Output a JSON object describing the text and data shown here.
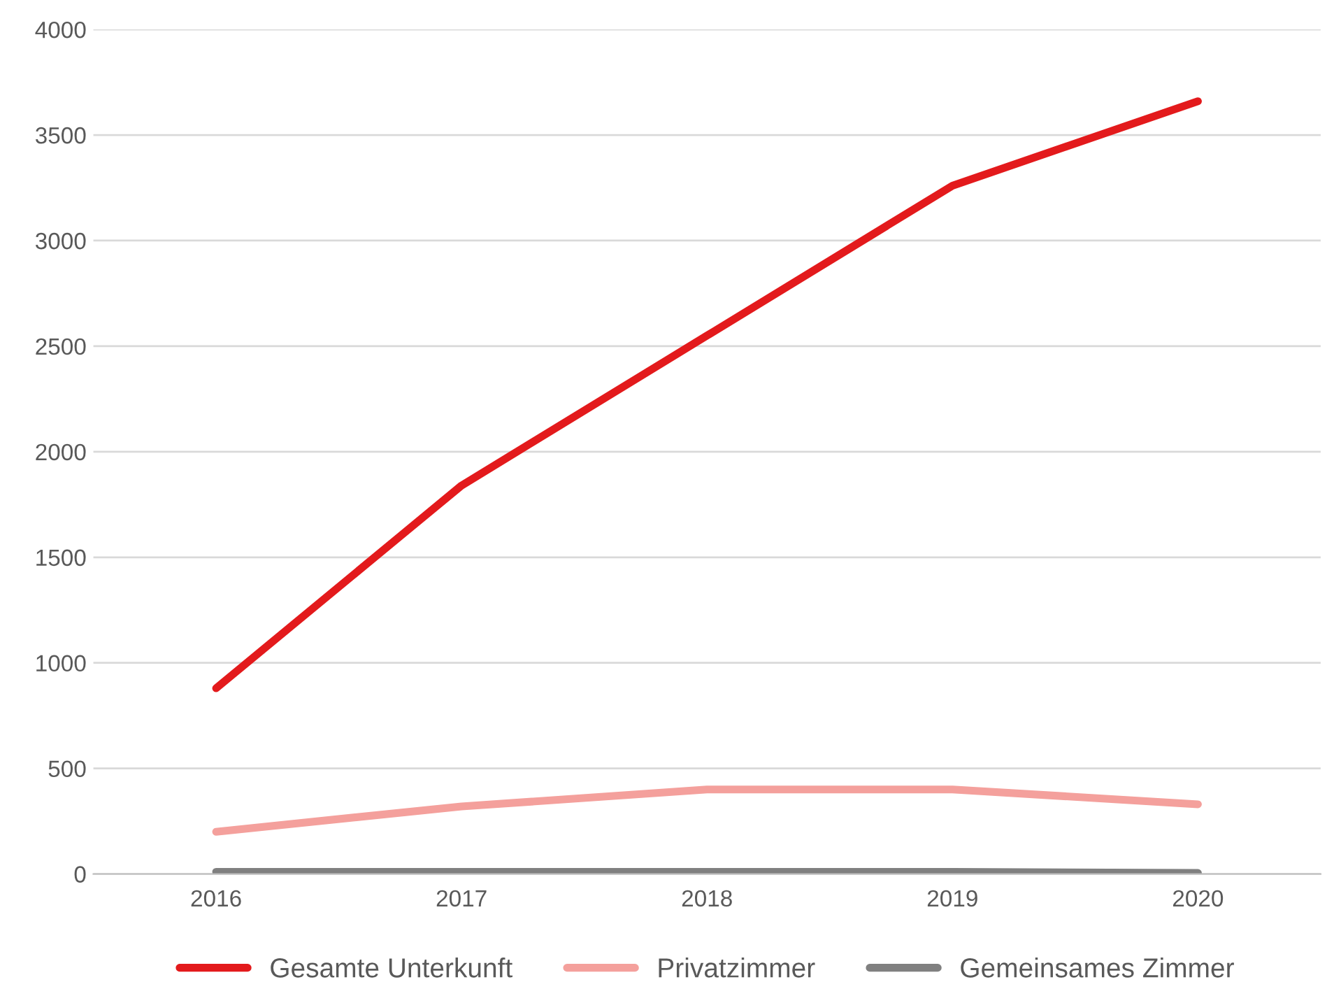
{
  "chart_data": {
    "type": "line",
    "categories": [
      "2016",
      "2017",
      "2018",
      "2019",
      "2020"
    ],
    "series": [
      {
        "name": "Gesamte Unterkunft",
        "color": "#e31a1c",
        "values": [
          880,
          1840,
          2550,
          3260,
          3660
        ]
      },
      {
        "name": "Privatzimmer",
        "color": "#f4a09c",
        "values": [
          200,
          320,
          400,
          400,
          330
        ]
      },
      {
        "name": "Gemeinsames Zimmer",
        "color": "#808080",
        "values": [
          10,
          10,
          10,
          10,
          5
        ]
      }
    ],
    "ylim": [
      0,
      4000
    ],
    "yticks": [
      0,
      500,
      1000,
      1500,
      2000,
      2500,
      3000,
      3500,
      4000
    ],
    "grid": "y",
    "legend": "bottom",
    "marker": "none",
    "line_style": "solid"
  }
}
